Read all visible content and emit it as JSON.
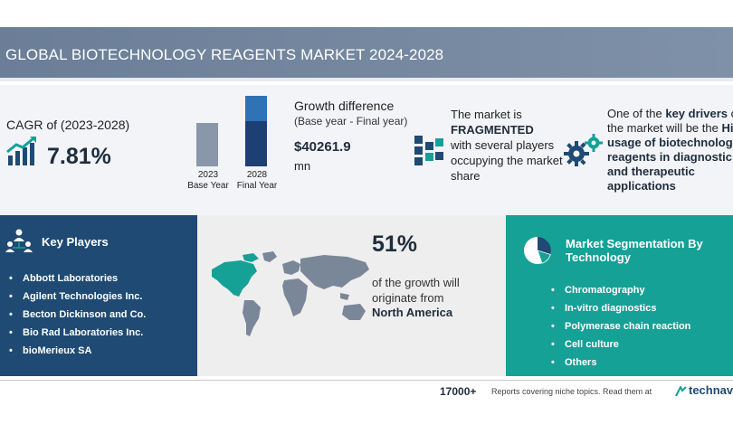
{
  "header": {
    "title": "GLOBAL BIOTECHNOLOGY REAGENTS MARKET 2024-2028"
  },
  "cagr": {
    "label": "CAGR of (2023-2028)",
    "value": "7.81%",
    "icon": "bar-chart-growth-icon"
  },
  "growth": {
    "title": "Growth difference",
    "subtitle": "(Base year - Final year)",
    "value": "$40261.9",
    "unit": "mn",
    "bars": [
      {
        "year": "2023",
        "label": "Base Year"
      },
      {
        "year": "2028",
        "label": "Final Year"
      }
    ]
  },
  "market": {
    "line1": "The market is",
    "bold": "FRAGMENTED",
    "line2": "with several players occupying the market share",
    "icon": "fragmented-blocks-icon"
  },
  "drivers": {
    "intro": "One of the",
    "bold_key": "key drivers",
    "middle": "of the market will be the",
    "bold_driver": "High usage of biotechnology reagents in diagnostic and therapeutic applications",
    "icon": "gears-icon"
  },
  "key_players": {
    "title": "Key Players",
    "items": [
      "Abbott Laboratories",
      "Agilent Technologies Inc.",
      "Becton Dickinson and Co.",
      "Bio Rad Laboratories Inc.",
      "bioMerieux SA"
    ],
    "icon": "network-people-icon"
  },
  "region": {
    "percent": "51%",
    "text": "of the growth will originate from",
    "name": "North America",
    "highlight_color": "#15a196"
  },
  "segmentation": {
    "title": "Market Segmentation By Technology",
    "items": [
      "Chromatography",
      "In-vitro diagnostics",
      "Polymerase chain reaction",
      "Cell culture",
      "Others"
    ],
    "icon": "pie-chart-icon"
  },
  "footer": {
    "count": "17000+",
    "note": "Reports covering niche topics. Read them at",
    "brand": "technavio"
  },
  "colors": {
    "title_bar": "#7586a0",
    "navy": "#1f4a73",
    "teal": "#15a196",
    "bar_base": "#8a97a9",
    "bar_final_dark": "#1e3f73",
    "bar_final_light": "#2f72b5"
  }
}
